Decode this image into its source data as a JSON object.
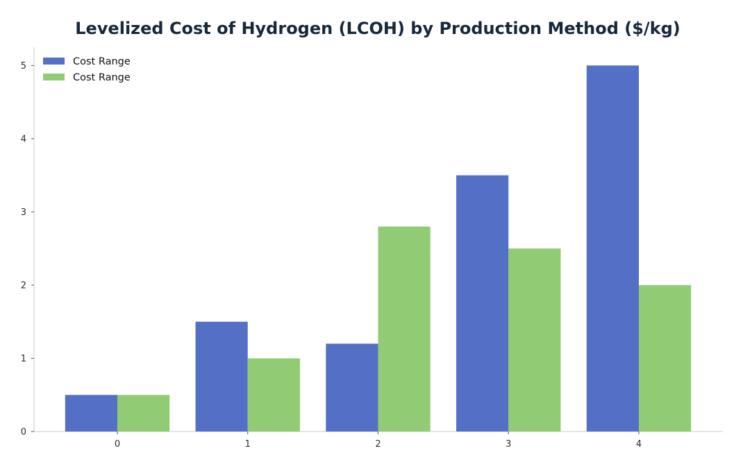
{
  "chart_data": {
    "type": "bar",
    "title": "Levelized Cost of Hydrogen (LCOH) by Production Method ($/kg)",
    "xlabel": "",
    "ylabel": "",
    "categories": [
      "0",
      "1",
      "2",
      "3",
      "4"
    ],
    "series": [
      {
        "name": "Cost Range",
        "color": "#5470c6",
        "values": [
          0.5,
          1.5,
          1.2,
          3.5,
          5.0
        ]
      },
      {
        "name": "Cost Range",
        "color": "#91cc75",
        "values": [
          0.5,
          1.0,
          2.8,
          2.5,
          2.0
        ]
      }
    ],
    "ylim": [
      0,
      5.25
    ],
    "yticks": [
      "0",
      "1",
      "2",
      "3",
      "4",
      "5"
    ],
    "grid": false,
    "legend_position": "top-left"
  }
}
